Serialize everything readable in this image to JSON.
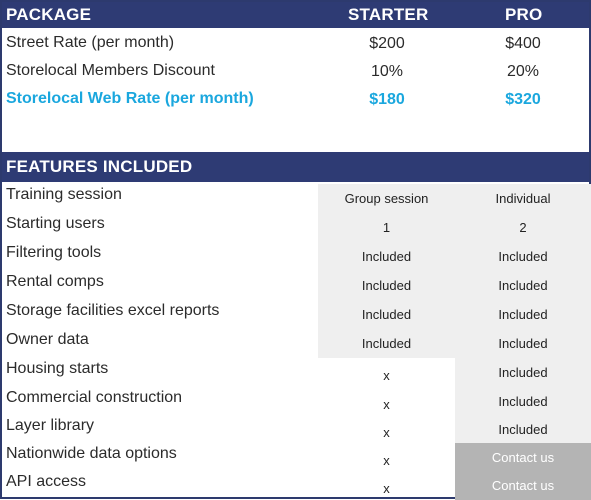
{
  "package_header": {
    "col_label": "PACKAGE",
    "starter": "STARTER",
    "pro": "PRO"
  },
  "pricing_rows": [
    {
      "label": "Street Rate (per month)",
      "starter": "$200",
      "pro": "$400"
    },
    {
      "label": "Storelocal Members Discount",
      "starter": "10%",
      "pro": "20%"
    },
    {
      "label": "Storelocal Web Rate (per month)",
      "starter": "$180",
      "pro": "$320"
    }
  ],
  "features_header": {
    "title": "FEATURES INCLUDED"
  },
  "feature_rows": [
    {
      "label": "Training session",
      "starter": "Group session",
      "pro": "Individual"
    },
    {
      "label": "Starting users",
      "starter": "1",
      "pro": "2"
    },
    {
      "label": "Filtering tools",
      "starter": "Included",
      "pro": "Included"
    },
    {
      "label": "Rental comps",
      "starter": "Included",
      "pro": "Included"
    },
    {
      "label": "Storage facilities excel reports",
      "starter": "Included",
      "pro": "Included"
    },
    {
      "label": "Owner data",
      "starter": "Included",
      "pro": "Included"
    },
    {
      "label": "Housing starts",
      "starter": "x",
      "pro": "Included"
    },
    {
      "label": "Commercial construction",
      "starter": "x",
      "pro": "Included"
    },
    {
      "label": "Layer library",
      "starter": "x",
      "pro": "Included"
    },
    {
      "label": "Nationwide data options",
      "starter": "x",
      "pro": "Contact us"
    },
    {
      "label": "API access",
      "starter": "x",
      "pro": "Contact us"
    }
  ],
  "colors": {
    "header_bg": "#2e3b74",
    "accent_text": "#1aa7de",
    "cell_light": "#efefef",
    "cell_gray": "#b4b4b4"
  }
}
